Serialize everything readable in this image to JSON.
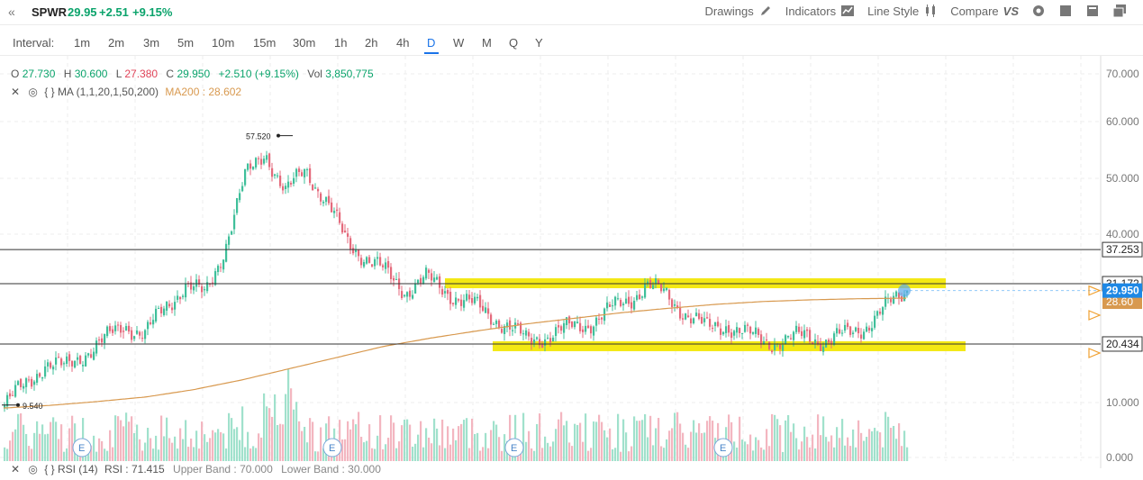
{
  "header": {
    "symbol": "SPWR",
    "last": "29.95",
    "change": "+2.51",
    "change_pct": "+9.15%",
    "drawings_label": "Drawings",
    "indicators_label": "Indicators",
    "line_style_label": "Line Style",
    "compare_label": "Compare",
    "compare_logo": "VS"
  },
  "intervals": {
    "label": "Interval:",
    "items": [
      "1m",
      "2m",
      "3m",
      "5m",
      "10m",
      "15m",
      "30m",
      "1h",
      "2h",
      "4h",
      "D",
      "W",
      "M",
      "Q",
      "Y"
    ],
    "selected": "D"
  },
  "ohlc": {
    "o_label": "O",
    "o": "27.730",
    "h_label": "H",
    "h": "30.600",
    "l_label": "L",
    "l": "27.380",
    "c_label": "C",
    "c": "29.950",
    "chg": "+2.510 (+9.15%)",
    "vol_label": "Vol",
    "vol": "3,850,775"
  },
  "ma_legend": {
    "name": "MA (1,1,20,1,50,200)",
    "value": "MA200 : 28.602"
  },
  "rsi_legend": {
    "name": "RSI (14)",
    "value": "RSI : 71.415",
    "upper": "Upper Band : 70.000",
    "lower": "Lower Band : 30.000"
  },
  "price_axis": {
    "ticks": [
      "70.000",
      "60.000",
      "50.000",
      "40.000",
      "10.000",
      "0.000"
    ],
    "tick_values": [
      70,
      60,
      50,
      40,
      10,
      0
    ]
  },
  "hlines": [
    {
      "label": "37.253",
      "value": 37.253
    },
    {
      "label": "31.172",
      "value": 31.172
    },
    {
      "label": "20.434",
      "value": 20.434
    }
  ],
  "last_price_tag": {
    "label": "29.950",
    "value": 29.95,
    "color": "#1e88e5"
  },
  "ma_tag": {
    "label": "28.60",
    "value": 28.602,
    "color": "#d8994f"
  },
  "annotations": {
    "high_label": "57.520",
    "low_label": "9.540"
  },
  "earnings_markers": [
    "E",
    "E",
    "E",
    "E"
  ],
  "colors": {
    "up": "#3fbf9a",
    "down": "#e46a7c",
    "ma": "#d8994f",
    "highlight": "#f2e600",
    "accent": "#1a73e8"
  },
  "chart_data": {
    "type": "candlestick",
    "description_points": {
      "approx_close_path": [
        9.5,
        13,
        17,
        16,
        19,
        21,
        24,
        22,
        27,
        31,
        29,
        38,
        50,
        55,
        47,
        52,
        46,
        39,
        36,
        33,
        30,
        32,
        30,
        28,
        26,
        24,
        21,
        22,
        23,
        24,
        26,
        28,
        31,
        29,
        26,
        23,
        24,
        22,
        21,
        21,
        22,
        21,
        22,
        24,
        27,
        30
      ],
      "ma200_path": [
        9.0,
        9.5,
        10.2,
        11.0,
        12.3,
        14.0,
        16.0,
        18.0,
        20.0,
        21.5,
        22.8,
        24.0,
        25.0,
        26.0,
        26.8,
        27.5,
        28.0,
        28.3,
        28.5,
        28.6
      ]
    },
    "ylim": [
      0,
      70
    ]
  }
}
